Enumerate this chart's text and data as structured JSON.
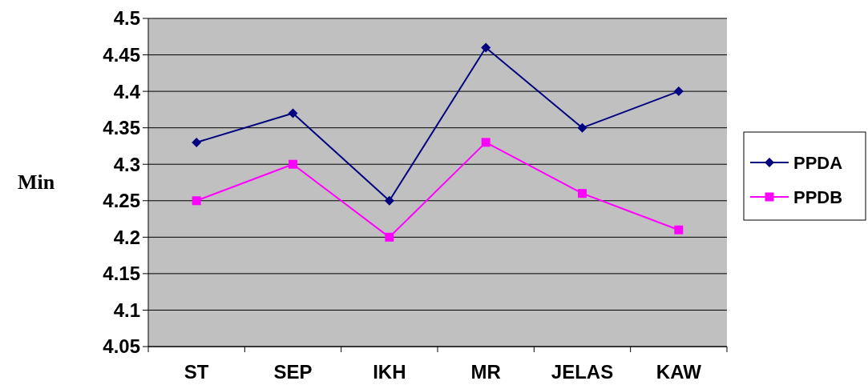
{
  "chart_data": {
    "type": "line",
    "ylabel": "Min",
    "categories": [
      "ST",
      "SEP",
      "IKH",
      "MR",
      "JELAS",
      "KAW"
    ],
    "series": [
      {
        "name": "PPDA",
        "color": "#000080",
        "marker": "diamond",
        "values": [
          4.33,
          4.37,
          4.25,
          4.46,
          4.35,
          4.4
        ]
      },
      {
        "name": "PPDB",
        "color": "#ff00ff",
        "marker": "square",
        "values": [
          4.25,
          4.3,
          4.2,
          4.33,
          4.26,
          4.21
        ]
      }
    ],
    "ylim": [
      4.05,
      4.5
    ],
    "yticks": [
      4.05,
      4.1,
      4.15,
      4.2,
      4.25,
      4.3,
      4.35,
      4.4,
      4.45,
      4.5
    ],
    "grid": "y",
    "legend": "right"
  }
}
